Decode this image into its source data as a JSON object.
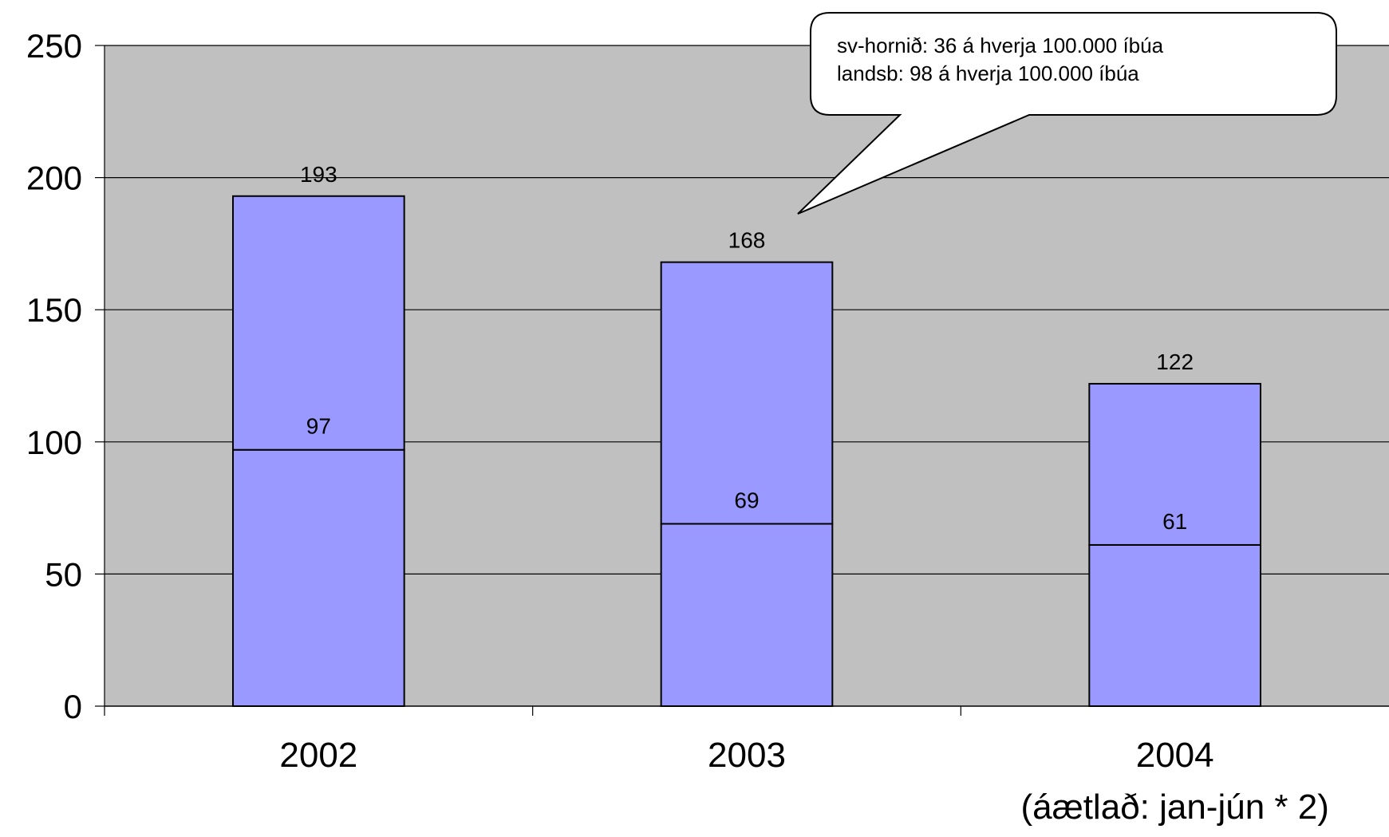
{
  "chart_data": {
    "type": "bar",
    "stacked": true,
    "categories": [
      "2002",
      "2003",
      "2004"
    ],
    "category_sublabels": [
      "",
      "",
      "(áætlað: jan-jún * 2)"
    ],
    "series": [
      {
        "values": [
          97,
          69,
          61
        ]
      },
      {
        "values": [
          96,
          99,
          61
        ]
      }
    ],
    "totals": [
      193,
      168,
      122
    ],
    "segment_labels": [
      "97",
      "69",
      "61"
    ],
    "total_labels": [
      "193",
      "168",
      "122"
    ],
    "ylim": [
      0,
      250
    ],
    "yticks": [
      0,
      50,
      100,
      150,
      200,
      250
    ],
    "ytick_labels": [
      "0",
      "50",
      "100",
      "150",
      "200",
      "250"
    ],
    "grid": true,
    "title": "",
    "xlabel": "",
    "ylabel": "",
    "callout": {
      "lines": [
        "sv-hornið: 36 á hverja 100.000 íbúa",
        "landsb: 98 á hverja 100.000 íbúa"
      ]
    },
    "colors": {
      "plot_background": "#c0c0c0",
      "bar_fill": "#9999ff",
      "outline": "#000000"
    }
  }
}
